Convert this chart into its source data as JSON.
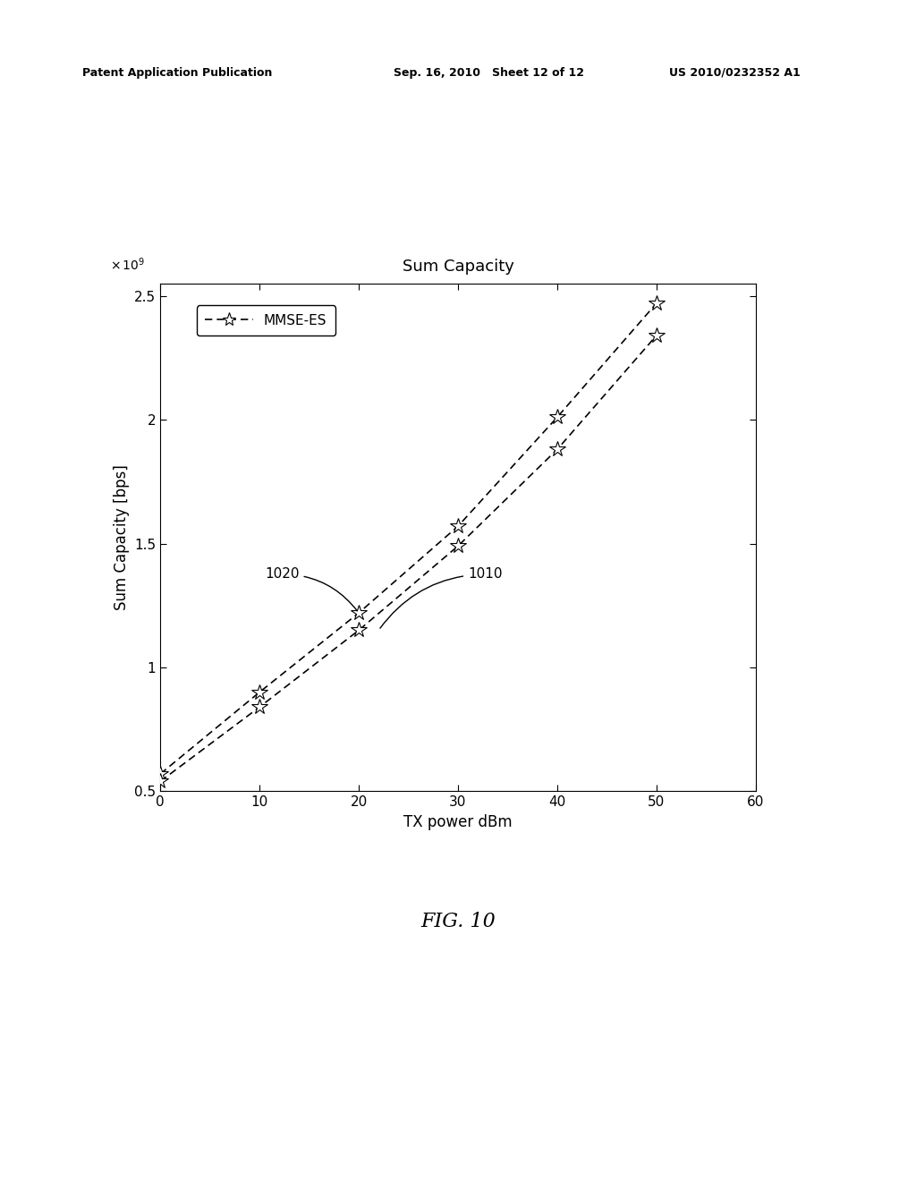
{
  "title": "Sum Capacity",
  "xlabel": "TX power dBm",
  "ylabel": "Sum Capacity [bps]",
  "xlim": [
    0,
    60
  ],
  "ylim": [
    500000000.0,
    2550000000.0
  ],
  "yticks": [
    500000000.0,
    1000000000.0,
    1500000000.0,
    2000000000.0,
    2500000000.0
  ],
  "ytick_labels": [
    "0.5",
    "1",
    "1.5",
    "2",
    "2.5"
  ],
  "xticks": [
    0,
    10,
    20,
    30,
    40,
    50,
    60
  ],
  "line1020": {
    "x": [
      0,
      10,
      20,
      30,
      40,
      50
    ],
    "y": [
      570000000.0,
      900000000.0,
      1220000000.0,
      1570000000.0,
      2010000000.0,
      2470000000.0
    ]
  },
  "line1010": {
    "x": [
      0,
      10,
      20,
      30,
      40,
      50
    ],
    "y": [
      540000000.0,
      840000000.0,
      1150000000.0,
      1490000000.0,
      1880000000.0,
      2340000000.0
    ]
  },
  "legend_label": "MMSE-ES",
  "background_color": "#ffffff",
  "header_left": "Patent Application Publication",
  "header_mid": "Sep. 16, 2010   Sheet 12 of 12",
  "header_right": "US 2010/0232352 A1",
  "figure_label": "FIG. 10"
}
